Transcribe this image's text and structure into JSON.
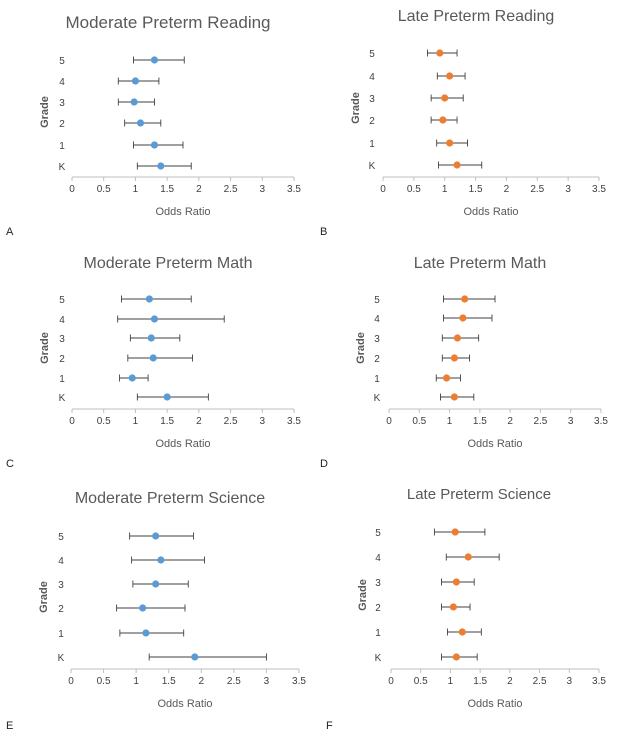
{
  "chart_data": [
    {
      "type": "scatter",
      "title": "Moderate Preterm Reading",
      "panel_label": "A",
      "xlabel": "Odds Ratio",
      "ylabel": "Grade",
      "xlim": [
        0,
        3.5
      ],
      "xticks": [
        "0",
        "0.5",
        "1",
        "1.5",
        "2",
        "2.5",
        "3",
        "3.5"
      ],
      "categories": [
        "K",
        "1",
        "2",
        "3",
        "4",
        "5"
      ],
      "color": "#5b9bd5",
      "points": [
        {
          "grade": "K",
          "or": 1.4,
          "low": 1.03,
          "high": 1.88
        },
        {
          "grade": "1",
          "or": 1.3,
          "low": 0.97,
          "high": 1.75
        },
        {
          "grade": "2",
          "or": 1.08,
          "low": 0.83,
          "high": 1.4
        },
        {
          "grade": "3",
          "or": 0.98,
          "low": 0.73,
          "high": 1.3
        },
        {
          "grade": "4",
          "or": 1.0,
          "low": 0.73,
          "high": 1.37
        },
        {
          "grade": "5",
          "or": 1.3,
          "low": 0.97,
          "high": 1.77
        }
      ]
    },
    {
      "type": "scatter",
      "title": "Late Preterm Reading",
      "panel_label": "B",
      "xlabel": "Odds Ratio",
      "ylabel": "Grade",
      "xlim": [
        0,
        3.5
      ],
      "xticks": [
        "0",
        "0.5",
        "1",
        "1.5",
        "2",
        "2.5",
        "3",
        "3.5"
      ],
      "categories": [
        "K",
        "1",
        "2",
        "3",
        "4",
        "5"
      ],
      "color": "#ed7d31",
      "points": [
        {
          "grade": "K",
          "or": 1.2,
          "low": 0.9,
          "high": 1.6
        },
        {
          "grade": "1",
          "or": 1.08,
          "low": 0.87,
          "high": 1.37
        },
        {
          "grade": "2",
          "or": 0.97,
          "low": 0.78,
          "high": 1.2
        },
        {
          "grade": "3",
          "or": 1.0,
          "low": 0.78,
          "high": 1.3
        },
        {
          "grade": "4",
          "or": 1.08,
          "low": 0.88,
          "high": 1.33
        },
        {
          "grade": "5",
          "or": 0.92,
          "low": 0.72,
          "high": 1.2
        }
      ]
    },
    {
      "type": "scatter",
      "title": "Moderate Preterm Math",
      "panel_label": "C",
      "xlabel": "Odds Ratio",
      "ylabel": "Grade",
      "xlim": [
        0,
        3.5
      ],
      "xticks": [
        "0",
        "0.5",
        "1",
        "1.5",
        "2",
        "2.5",
        "3",
        "3.5"
      ],
      "categories": [
        "K",
        "1",
        "2",
        "3",
        "4",
        "5"
      ],
      "color": "#5b9bd5",
      "points": [
        {
          "grade": "K",
          "or": 1.5,
          "low": 1.03,
          "high": 2.15
        },
        {
          "grade": "1",
          "or": 0.95,
          "low": 0.75,
          "high": 1.2
        },
        {
          "grade": "2",
          "or": 1.28,
          "low": 0.88,
          "high": 1.9
        },
        {
          "grade": "3",
          "or": 1.25,
          "low": 0.92,
          "high": 1.7
        },
        {
          "grade": "4",
          "or": 1.3,
          "low": 0.72,
          "high": 2.4
        },
        {
          "grade": "5",
          "or": 1.22,
          "low": 0.78,
          "high": 1.88
        }
      ]
    },
    {
      "type": "scatter",
      "title": "Late Preterm Math",
      "panel_label": "D",
      "xlabel": "Odds Ratio",
      "ylabel": "Grade",
      "xlim": [
        0,
        3.5
      ],
      "xticks": [
        "0",
        "0.5",
        "1",
        "1.5",
        "2",
        "2.5",
        "3",
        "3.5"
      ],
      "categories": [
        "K",
        "1",
        "2",
        "3",
        "4",
        "5"
      ],
      "color": "#ed7d31",
      "points": [
        {
          "grade": "K",
          "or": 1.08,
          "low": 0.85,
          "high": 1.4
        },
        {
          "grade": "1",
          "or": 0.95,
          "low": 0.78,
          "high": 1.18
        },
        {
          "grade": "2",
          "or": 1.08,
          "low": 0.88,
          "high": 1.33
        },
        {
          "grade": "3",
          "or": 1.13,
          "low": 0.88,
          "high": 1.48
        },
        {
          "grade": "4",
          "or": 1.22,
          "low": 0.9,
          "high": 1.7
        },
        {
          "grade": "5",
          "or": 1.25,
          "low": 0.9,
          "high": 1.75
        }
      ]
    },
    {
      "type": "scatter",
      "title": "Moderate Preterm Science",
      "panel_label": "E",
      "xlabel": "Odds Ratio",
      "ylabel": "Grade",
      "xlim": [
        0,
        3.5
      ],
      "xticks": [
        "0",
        "0.5",
        "1",
        "1.5",
        "2",
        "2.5",
        "3",
        "3.5"
      ],
      "categories": [
        "K",
        "1",
        "2",
        "3",
        "4",
        "5"
      ],
      "color": "#5b9bd5",
      "points": [
        {
          "grade": "K",
          "or": 1.9,
          "low": 1.2,
          "high": 3.0
        },
        {
          "grade": "1",
          "or": 1.15,
          "low": 0.75,
          "high": 1.73
        },
        {
          "grade": "2",
          "or": 1.1,
          "low": 0.7,
          "high": 1.75
        },
        {
          "grade": "3",
          "or": 1.3,
          "low": 0.95,
          "high": 1.8
        },
        {
          "grade": "4",
          "or": 1.38,
          "low": 0.93,
          "high": 2.05
        },
        {
          "grade": "5",
          "or": 1.3,
          "low": 0.9,
          "high": 1.88
        }
      ]
    },
    {
      "type": "scatter",
      "title": "Late Preterm Science",
      "panel_label": "F",
      "xlabel": "Odds Ratio",
      "ylabel": "Grade",
      "xlim": [
        0,
        3.5
      ],
      "xticks": [
        "0",
        "0.5",
        "1",
        "1.5",
        "2",
        "2.5",
        "3",
        "3.5"
      ],
      "categories": [
        "K",
        "1",
        "2",
        "3",
        "4",
        "5"
      ],
      "color": "#ed7d31",
      "points": [
        {
          "grade": "K",
          "or": 1.1,
          "low": 0.85,
          "high": 1.45
        },
        {
          "grade": "1",
          "or": 1.2,
          "low": 0.95,
          "high": 1.52
        },
        {
          "grade": "2",
          "or": 1.05,
          "low": 0.85,
          "high": 1.33
        },
        {
          "grade": "3",
          "or": 1.1,
          "low": 0.85,
          "high": 1.4
        },
        {
          "grade": "4",
          "or": 1.3,
          "low": 0.93,
          "high": 1.82
        },
        {
          "grade": "5",
          "or": 1.08,
          "low": 0.73,
          "high": 1.58
        }
      ]
    }
  ]
}
